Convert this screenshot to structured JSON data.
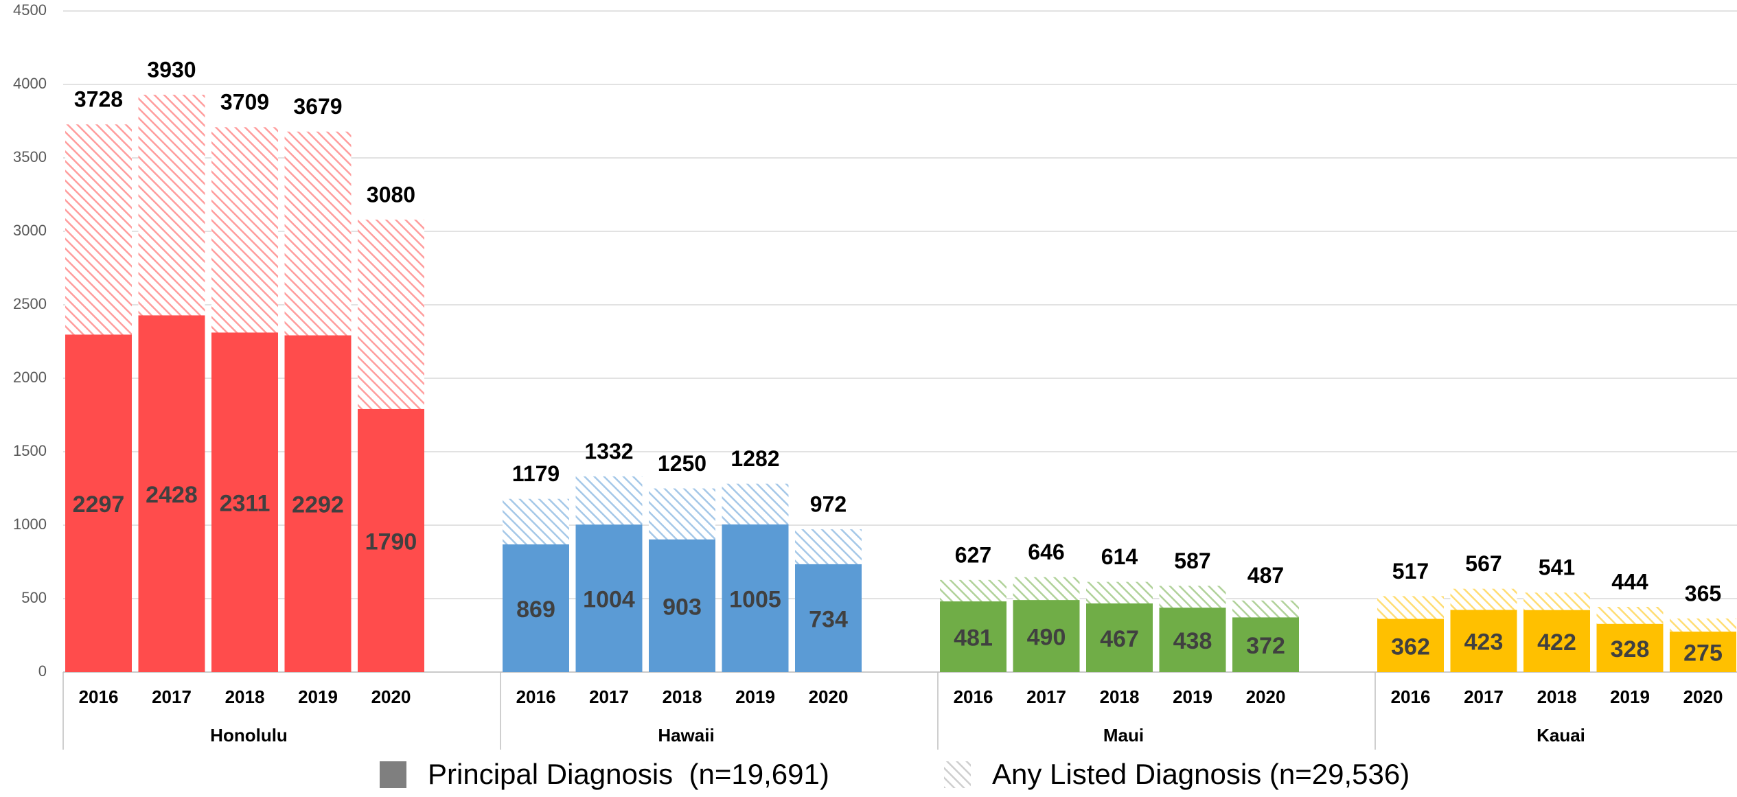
{
  "chart_data": {
    "type": "bar",
    "ylim": [
      0,
      4500
    ],
    "yticks": [
      0,
      500,
      1000,
      1500,
      2000,
      2500,
      3000,
      3500,
      4000,
      4500
    ],
    "grid": true,
    "legend": "bottom",
    "series": [
      {
        "name": "Principal Diagnosis  (n=19,691)",
        "color": "#7f7f7f",
        "pattern": "solid"
      },
      {
        "name": "Any Listed Diagnosis (n=29,536)",
        "color": "#a6a6a6",
        "pattern": "hatched"
      }
    ],
    "groups": [
      {
        "name": "Honolulu",
        "color": "#ff4c4c",
        "categories": [
          "2016",
          "2017",
          "2018",
          "2019",
          "2020"
        ],
        "values": [
          [
            2297,
            2428,
            2311,
            2292,
            1790
          ],
          [
            3728,
            3930,
            3709,
            3679,
            3080
          ]
        ]
      },
      {
        "name": "Hawaii",
        "color": "#5b9bd5",
        "categories": [
          "2016",
          "2017",
          "2018",
          "2019",
          "2020"
        ],
        "values": [
          [
            869,
            1004,
            903,
            1005,
            734
          ],
          [
            1179,
            1332,
            1250,
            1282,
            972
          ]
        ]
      },
      {
        "name": "Maui",
        "color": "#70ad47",
        "categories": [
          "2016",
          "2017",
          "2018",
          "2019",
          "2020"
        ],
        "values": [
          [
            481,
            490,
            467,
            438,
            372
          ],
          [
            627,
            646,
            614,
            587,
            487
          ]
        ]
      },
      {
        "name": "Kauai",
        "color": "#ffc000",
        "categories": [
          "2016",
          "2017",
          "2018",
          "2019",
          "2020"
        ],
        "values": [
          [
            362,
            423,
            422,
            328,
            275
          ],
          [
            517,
            567,
            541,
            444,
            365
          ]
        ]
      }
    ]
  }
}
